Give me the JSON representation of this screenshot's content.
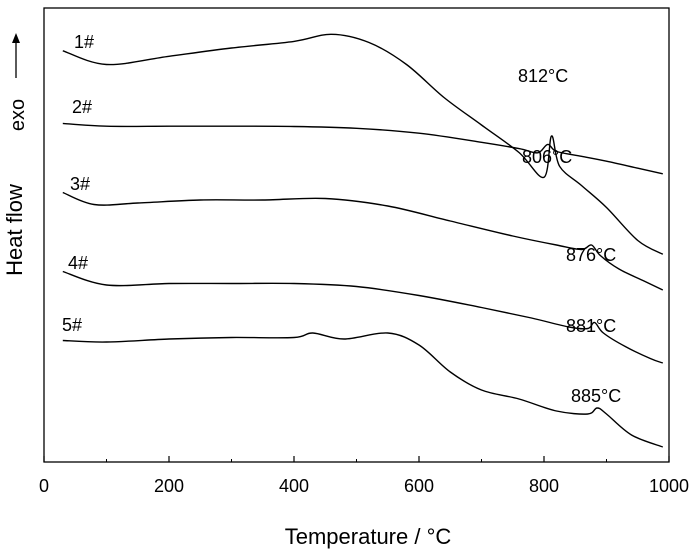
{
  "chart_data": {
    "type": "line",
    "title": "",
    "xlabel": "Temperature / °C",
    "ylabel": "Heat flow",
    "exo_label": "exo",
    "xlim": [
      0,
      1000
    ],
    "xticks": [
      0,
      200,
      400,
      600,
      800,
      1000
    ],
    "y_ticks_shown": false,
    "grid": false,
    "legend": "none",
    "series": [
      {
        "label": "1#",
        "peak_label": "812°C",
        "x": [
          30,
          100,
          200,
          300,
          400,
          460,
          520,
          580,
          640,
          700,
          760,
          800,
          812,
          825,
          860,
          900,
          950,
          990
        ],
        "y": [
          -0.05,
          -0.3,
          -0.15,
          0.0,
          0.12,
          0.25,
          0.1,
          -0.3,
          -0.9,
          -1.4,
          -1.9,
          -2.35,
          -1.6,
          -2.15,
          -2.5,
          -2.9,
          -3.5,
          -3.75
        ]
      },
      {
        "label": "2#",
        "peak_label": "806°C",
        "x": [
          30,
          100,
          200,
          300,
          400,
          500,
          600,
          700,
          760,
          790,
          806,
          820,
          860,
          900,
          950,
          990
        ],
        "y": [
          -0.1,
          -0.3,
          -0.3,
          -0.3,
          -0.32,
          -0.45,
          -0.8,
          -1.45,
          -1.9,
          -2.2,
          -1.6,
          -2.1,
          -2.45,
          -2.8,
          -3.3,
          -3.7
        ]
      },
      {
        "label": "3#",
        "peak_label": "876°C",
        "x": [
          30,
          80,
          150,
          250,
          350,
          450,
          550,
          650,
          750,
          820,
          860,
          876,
          890,
          920,
          960,
          990
        ],
        "y": [
          -0.05,
          -0.45,
          -0.4,
          -0.3,
          -0.3,
          -0.25,
          -0.5,
          -1.0,
          -1.5,
          -1.8,
          -1.95,
          -1.8,
          -2.15,
          -2.6,
          -3.0,
          -3.3
        ]
      },
      {
        "label": "4#",
        "peak_label": "881°C",
        "x": [
          30,
          100,
          200,
          300,
          400,
          500,
          600,
          700,
          780,
          840,
          870,
          881,
          895,
          930,
          970,
          990
        ],
        "y": [
          -0.05,
          -0.5,
          -0.45,
          -0.45,
          -0.45,
          -0.55,
          -0.85,
          -1.25,
          -1.6,
          -1.9,
          -1.95,
          -1.75,
          -2.1,
          -2.55,
          -2.95,
          -3.1
        ]
      },
      {
        "label": "5#",
        "peak_label": "885°C",
        "x": [
          30,
          100,
          200,
          300,
          400,
          430,
          480,
          550,
          600,
          650,
          700,
          760,
          820,
          870,
          885,
          900,
          940,
          990
        ],
        "y": [
          -0.15,
          -0.2,
          -0.1,
          -0.05,
          -0.05,
          0.1,
          -0.1,
          0.1,
          -0.3,
          -1.2,
          -1.8,
          -2.1,
          -2.5,
          -2.6,
          -2.4,
          -2.6,
          -3.3,
          -3.7
        ]
      }
    ]
  }
}
